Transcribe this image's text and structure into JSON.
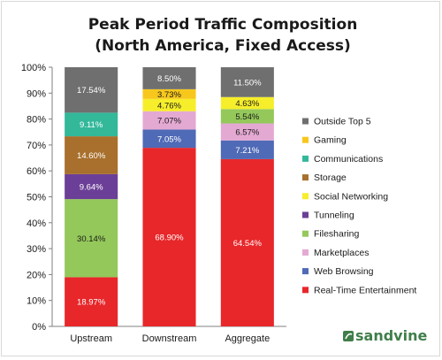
{
  "chart_data": {
    "type": "bar",
    "stacked": true,
    "title": [
      "Peak Period Traffic Composition",
      "(North America, Fixed Access)"
    ],
    "categories": [
      "Upstream",
      "Downstream",
      "Aggregate"
    ],
    "y_ticks": [
      "0%",
      "10%",
      "20%",
      "30%",
      "40%",
      "50%",
      "60%",
      "70%",
      "80%",
      "90%",
      "100%"
    ],
    "ylim": [
      0,
      100
    ],
    "grid": false,
    "legend_position": "right",
    "series": [
      {
        "name": "Real-Time Entertainment",
        "color": "#e8272a",
        "values": [
          18.97,
          68.9,
          64.54
        ],
        "labels": [
          "18.97%",
          "68.90%",
          "64.54%"
        ]
      },
      {
        "name": "Web Browsing",
        "color": "#4f6ab6",
        "values": [
          0,
          7.05,
          7.21
        ],
        "labels": [
          "",
          "7.05%",
          "7.21%"
        ]
      },
      {
        "name": "Marketplaces",
        "color": "#e4a9d3",
        "values": [
          0,
          7.07,
          6.57
        ],
        "labels": [
          "",
          "7.07%",
          "6.57%"
        ]
      },
      {
        "name": "Filesharing",
        "color": "#94c85a",
        "values": [
          30.14,
          0,
          5.54
        ],
        "labels": [
          "30.14%",
          "",
          "5.54%"
        ]
      },
      {
        "name": "Tunneling",
        "color": "#6b3f97",
        "values": [
          9.64,
          0,
          0
        ],
        "labels": [
          "9.64%",
          "",
          ""
        ]
      },
      {
        "name": "Social Networking",
        "color": "#f6ee2b",
        "values": [
          0,
          4.76,
          4.63
        ],
        "labels": [
          "",
          "4.76%",
          "4.63%"
        ]
      },
      {
        "name": "Storage",
        "color": "#a8702c",
        "values": [
          14.6,
          0,
          0
        ],
        "labels": [
          "14.60%",
          "",
          ""
        ]
      },
      {
        "name": "Communications",
        "color": "#33b89a",
        "values": [
          9.11,
          0,
          0
        ],
        "labels": [
          "9.11%",
          "",
          ""
        ]
      },
      {
        "name": "Gaming",
        "color": "#f7c71c",
        "values": [
          0,
          3.73,
          0
        ],
        "labels": [
          "",
          "3.73%",
          ""
        ]
      },
      {
        "name": "Outside Top 5",
        "color": "#6f6f6f",
        "values": [
          17.54,
          8.5,
          11.5
        ],
        "labels": [
          "17.54%",
          "8.50%",
          "11.50%"
        ]
      }
    ],
    "legend_order": [
      "Outside Top 5",
      "Gaming",
      "Communications",
      "Storage",
      "Social Networking",
      "Tunneling",
      "Filesharing",
      "Marketplaces",
      "Web Browsing",
      "Real-Time Entertainment"
    ]
  },
  "brand": {
    "name": "sandvine",
    "color": "#3f7e4a",
    "icon": "sandvine-logo-icon"
  }
}
